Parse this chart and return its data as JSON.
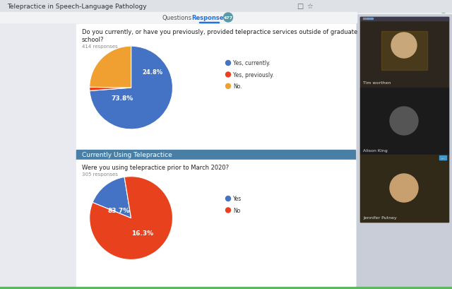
{
  "bg_color": "#e8eaf0",
  "white": "#ffffff",
  "header_bg": "#4a7fa5",
  "header_text": "Currently Using Telepractice",
  "header_text_color": "#ffffff",
  "browser_title": "Telepractice in Speech-Language Pathology",
  "tab_questions": "Questions",
  "tab_responses": "Responses",
  "tab_count": "477",
  "tab_badge_color": "#5b9aa8",
  "chart1_question_line1": "Do you currently, or have you previously, provided telepractice services outside of graduate",
  "chart1_question_line2": "school?",
  "chart1_responses": "414 responses",
  "chart1_values": [
    73.8,
    1.4,
    24.8
  ],
  "chart1_labels_legend": [
    "Yes, currently.",
    "Yes, previously.",
    "No."
  ],
  "chart1_pct_labels": [
    "73.8%",
    "24.8%"
  ],
  "chart1_colors": [
    "#4472c4",
    "#e8411e",
    "#f0a030"
  ],
  "chart1_startangle": 90,
  "chart2_question": "Were you using telepractice prior to March 2020?",
  "chart2_responses": "305 responses",
  "chart2_values": [
    16.3,
    83.7
  ],
  "chart2_labels_legend": [
    "Yes",
    "No"
  ],
  "chart2_pct_labels": [
    "83.7%",
    "16.3%"
  ],
  "chart2_colors": [
    "#4472c4",
    "#e8411e"
  ],
  "chart2_startangle": 158,
  "right_panel_color": "#c8cdd8",
  "video_dark": "#2a2a2a",
  "video_bar_color": "#3a3a4a",
  "video_label_color": "#dddddd",
  "figsize": [
    6.4,
    4.1
  ],
  "dpi": 100
}
